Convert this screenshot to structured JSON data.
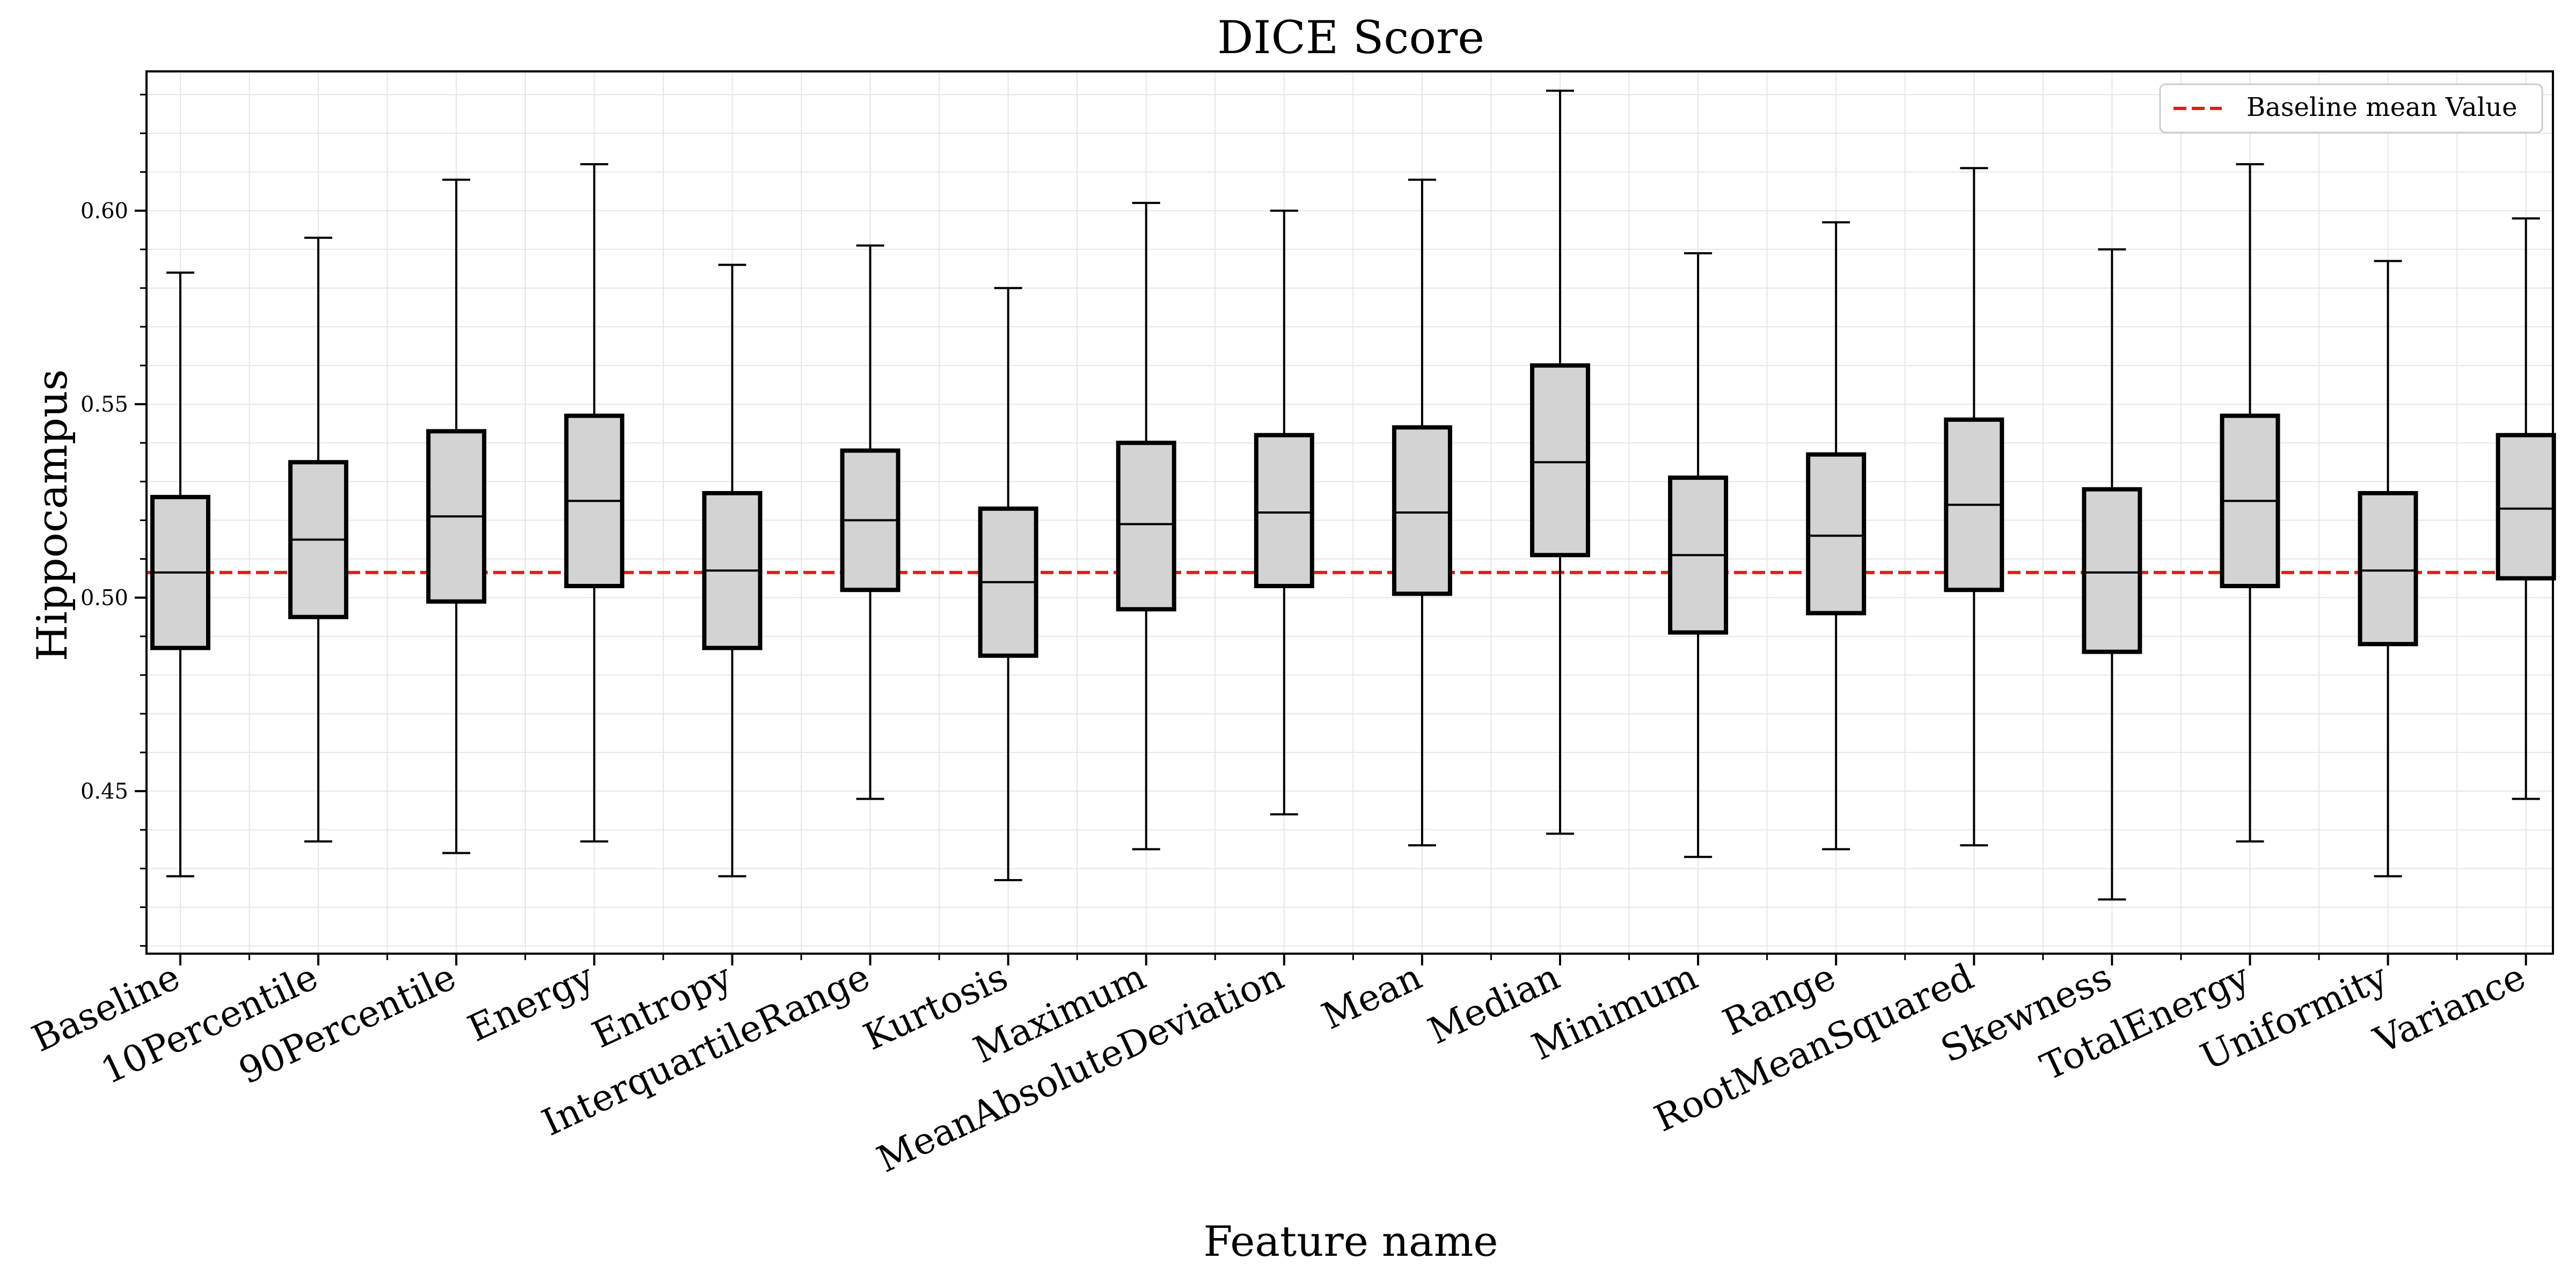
{
  "chart_data": {
    "type": "box",
    "title": "DICE Score",
    "xlabel": "Feature name",
    "ylabel": "Hippocampus",
    "ylim": [
      0.408,
      0.636
    ],
    "yticks": [
      0.45,
      0.5,
      0.55,
      0.6
    ],
    "ytick_labels": [
      "0.45",
      "0.50",
      "0.55",
      "0.60"
    ],
    "grid": true,
    "legend": {
      "position": "top-right",
      "entries": [
        {
          "label": "Baseline mean Value",
          "style": "dashed",
          "color": "#e41a1c"
        }
      ]
    },
    "baseline_mean": 0.5065,
    "colors": {
      "box_fill": "#d3d3d3",
      "box_edge": "#000000",
      "baseline_line": "#e41a1c",
      "grid": "#e6e6e6"
    },
    "categories": [
      "Baseline",
      "10Percentile",
      "90Percentile",
      "Energy",
      "Entropy",
      "InterquartileRange",
      "Kurtosis",
      "Maximum",
      "MeanAbsoluteDeviation",
      "Mean",
      "Median",
      "Minimum",
      "Range",
      "RootMeanSquared",
      "Skewness",
      "TotalEnergy",
      "Uniformity",
      "Variance"
    ],
    "boxes": [
      {
        "whisker_low": 0.428,
        "q1": 0.487,
        "median": 0.5065,
        "q3": 0.526,
        "whisker_high": 0.584
      },
      {
        "whisker_low": 0.437,
        "q1": 0.495,
        "median": 0.515,
        "q3": 0.535,
        "whisker_high": 0.593
      },
      {
        "whisker_low": 0.434,
        "q1": 0.499,
        "median": 0.521,
        "q3": 0.543,
        "whisker_high": 0.608
      },
      {
        "whisker_low": 0.437,
        "q1": 0.503,
        "median": 0.525,
        "q3": 0.547,
        "whisker_high": 0.612
      },
      {
        "whisker_low": 0.428,
        "q1": 0.487,
        "median": 0.507,
        "q3": 0.527,
        "whisker_high": 0.586
      },
      {
        "whisker_low": 0.448,
        "q1": 0.502,
        "median": 0.52,
        "q3": 0.538,
        "whisker_high": 0.591
      },
      {
        "whisker_low": 0.427,
        "q1": 0.485,
        "median": 0.504,
        "q3": 0.523,
        "whisker_high": 0.58
      },
      {
        "whisker_low": 0.435,
        "q1": 0.497,
        "median": 0.519,
        "q3": 0.54,
        "whisker_high": 0.602
      },
      {
        "whisker_low": 0.444,
        "q1": 0.503,
        "median": 0.522,
        "q3": 0.542,
        "whisker_high": 0.6
      },
      {
        "whisker_low": 0.436,
        "q1": 0.501,
        "median": 0.522,
        "q3": 0.544,
        "whisker_high": 0.608
      },
      {
        "whisker_low": 0.439,
        "q1": 0.511,
        "median": 0.535,
        "q3": 0.56,
        "whisker_high": 0.631
      },
      {
        "whisker_low": 0.433,
        "q1": 0.491,
        "median": 0.511,
        "q3": 0.531,
        "whisker_high": 0.589
      },
      {
        "whisker_low": 0.435,
        "q1": 0.496,
        "median": 0.516,
        "q3": 0.537,
        "whisker_high": 0.597
      },
      {
        "whisker_low": 0.436,
        "q1": 0.502,
        "median": 0.524,
        "q3": 0.546,
        "whisker_high": 0.611
      },
      {
        "whisker_low": 0.422,
        "q1": 0.486,
        "median": 0.5065,
        "q3": 0.528,
        "whisker_high": 0.59
      },
      {
        "whisker_low": 0.437,
        "q1": 0.503,
        "median": 0.525,
        "q3": 0.547,
        "whisker_high": 0.612
      },
      {
        "whisker_low": 0.428,
        "q1": 0.488,
        "median": 0.507,
        "q3": 0.527,
        "whisker_high": 0.587
      },
      {
        "whisker_low": 0.448,
        "q1": 0.505,
        "median": 0.523,
        "q3": 0.542,
        "whisker_high": 0.598
      }
    ]
  }
}
